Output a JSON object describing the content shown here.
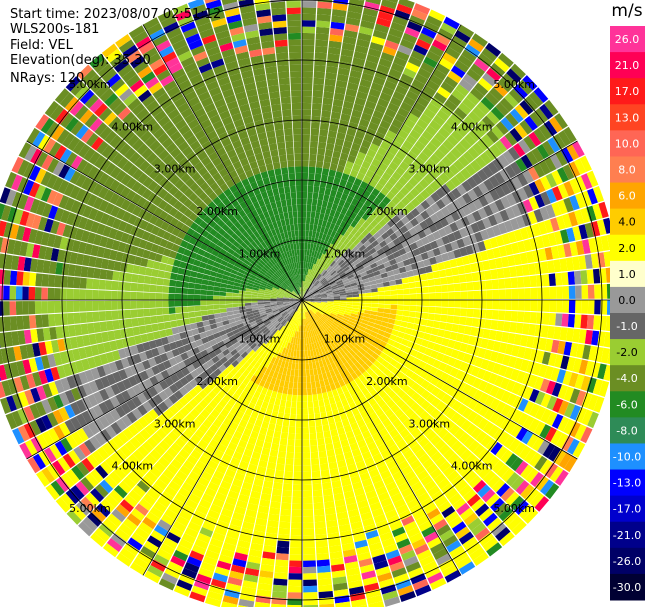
{
  "info": {
    "start_time": "Start time: 2023/08/07 02:51:12",
    "instrument": "WLS200s-181",
    "field": "Field: VEL",
    "elevation": "Elevation(deg): 35.30",
    "nrays": "NRays: 120"
  },
  "ppi": {
    "range_rings_km": [
      1,
      2,
      3,
      4,
      5
    ],
    "ring_labels": [
      "1.00km",
      "2.00km",
      "3.00km",
      "4.00km",
      "5.00km"
    ],
    "nrays": 120,
    "max_range_km": 5.3
  },
  "colorbar": {
    "unit": "m/s",
    "levels": [
      {
        "label": "26.0",
        "color": "#ff3399"
      },
      {
        "label": "21.0",
        "color": "#ff0055"
      },
      {
        "label": "17.0",
        "color": "#ff1a1a"
      },
      {
        "label": "13.0",
        "color": "#ff4422"
      },
      {
        "label": "10.0",
        "color": "#ff6655"
      },
      {
        "label": "8.0",
        "color": "#ff7f50"
      },
      {
        "label": "6.0",
        "color": "#ffa500"
      },
      {
        "label": "4.0",
        "color": "#ffcc00"
      },
      {
        "label": "2.0",
        "color": "#ffff00"
      },
      {
        "label": "1.0",
        "color": "#ffffcc"
      },
      {
        "label": "0.0",
        "color": "#999999"
      },
      {
        "label": "-1.0",
        "color": "#666666"
      },
      {
        "label": "-2.0",
        "color": "#9acd32"
      },
      {
        "label": "-4.0",
        "color": "#6b8e23"
      },
      {
        "label": "-6.0",
        "color": "#228b22"
      },
      {
        "label": "-8.0",
        "color": "#2e8b57"
      },
      {
        "label": "-10.0",
        "color": "#1e90ff"
      },
      {
        "label": "-13.0",
        "color": "#0000ff"
      },
      {
        "label": "-17.0",
        "color": "#0000cd"
      },
      {
        "label": "-21.0",
        "color": "#00008b"
      },
      {
        "label": "-26.0",
        "color": "#000066"
      },
      {
        "label": "-30.0",
        "color": "#000033"
      }
    ]
  }
}
